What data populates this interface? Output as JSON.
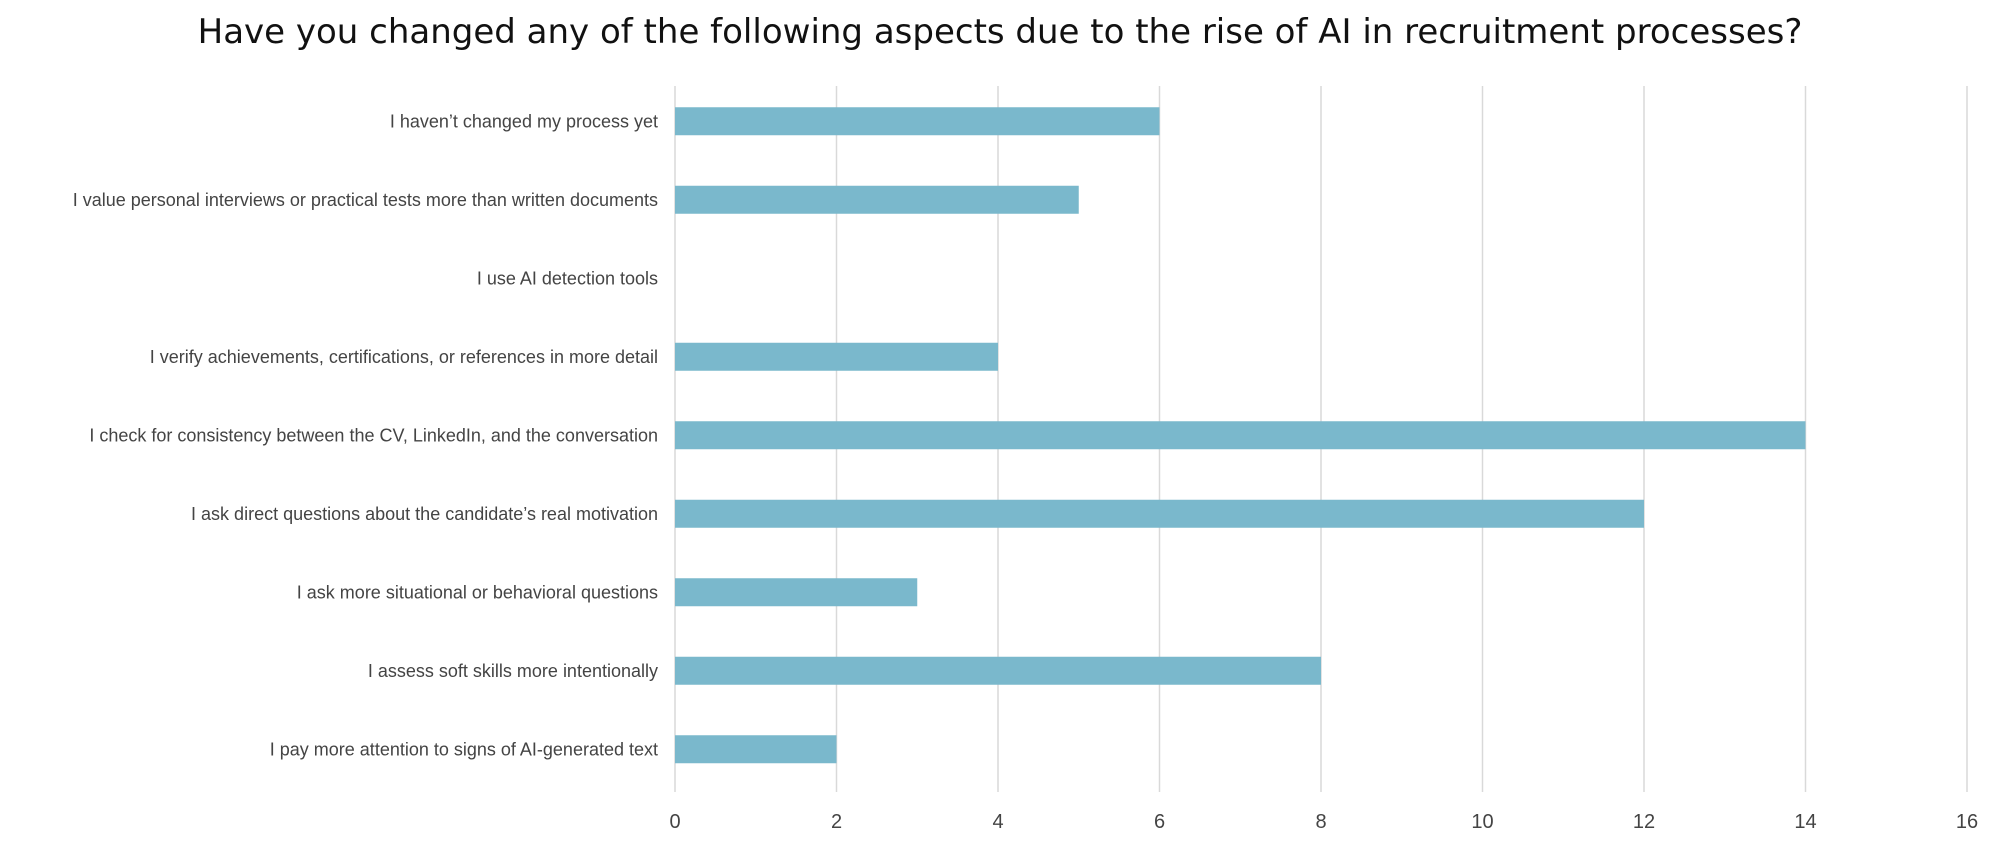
{
  "chart_data": {
    "type": "bar",
    "orientation": "horizontal",
    "title": "Have you changed any of the following aspects due to the rise of AI in recruitment processes?",
    "xlabel": "",
    "ylabel": "",
    "categories": [
      "I haven’t changed my process yet",
      "I value personal interviews or practical tests more than written documents",
      "I use AI detection tools",
      "I verify achievements, certifications, or references in more detail",
      "I check for consistency between the CV, LinkedIn, and the conversation",
      "I ask direct questions about the candidate’s real motivation",
      "I ask more situational or behavioral questions",
      "I assess soft skills more intentionally",
      "I pay more attention to signs of AI-generated text"
    ],
    "values": [
      6,
      5,
      0,
      4,
      14,
      12,
      3,
      8,
      2
    ],
    "xlim": [
      0,
      16
    ],
    "xticks": [
      "0",
      "2",
      "4",
      "6",
      "8",
      "10",
      "12",
      "14",
      "16"
    ],
    "grid": "vertical",
    "legend": "none",
    "bar_color": "#7ab8cc"
  }
}
